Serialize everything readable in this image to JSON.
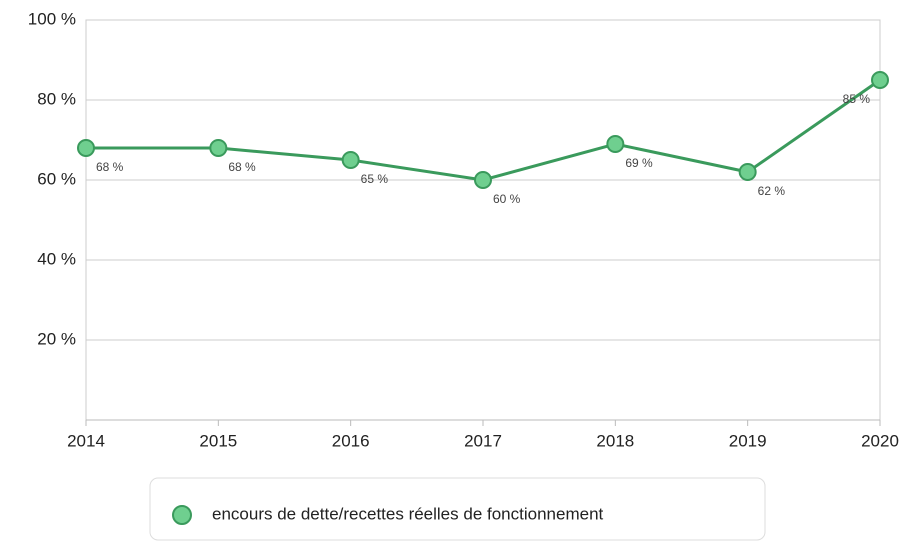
{
  "chart_data": {
    "type": "line",
    "categories": [
      "2014",
      "2015",
      "2016",
      "2017",
      "2018",
      "2019",
      "2020"
    ],
    "series": [
      {
        "name": "encours de dette/recettes réelles de fonctionnement",
        "color": "#3a9a5c",
        "marker_color": "#6fcf8f",
        "values": [
          68,
          68,
          65,
          60,
          69,
          62,
          85
        ],
        "value_labels": [
          "68 %",
          "68 %",
          "65 %",
          "60 %",
          "69 %",
          "62 %",
          "85 %"
        ]
      }
    ],
    "ylim": [
      0,
      100
    ],
    "yticks": [
      {
        "value": 20,
        "label": "20 %"
      },
      {
        "value": 40,
        "label": "40 %"
      },
      {
        "value": 60,
        "label": "60 %"
      },
      {
        "value": 80,
        "label": "80 %"
      },
      {
        "value": 100,
        "label": "100 %"
      }
    ],
    "grid": true,
    "legend": "bottom"
  }
}
